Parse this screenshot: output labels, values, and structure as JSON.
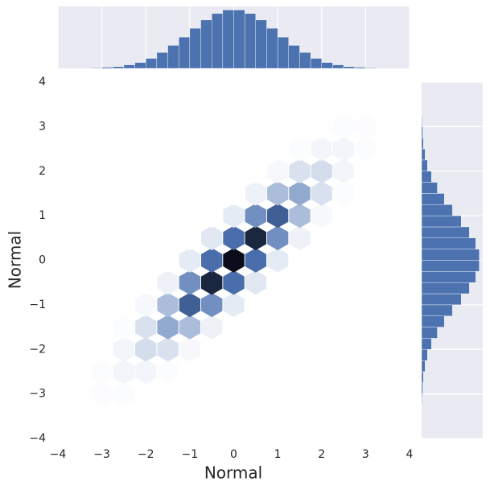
{
  "chart_data": {
    "type": "hexbin",
    "xlabel": "Normal",
    "ylabel": "Normal",
    "xlim": [
      -4,
      4
    ],
    "ylim": [
      -4,
      4
    ],
    "xticks": [
      {
        "value": -4,
        "label": "−4"
      },
      {
        "value": -3,
        "label": "−3"
      },
      {
        "value": -2,
        "label": "−2"
      },
      {
        "value": -1,
        "label": "−1"
      },
      0,
      1,
      2,
      3,
      4
    ],
    "yticks": [
      {
        "value": -4,
        "label": "−4"
      },
      {
        "value": -3,
        "label": "−3"
      },
      {
        "value": -2,
        "label": "−2"
      },
      {
        "value": -1,
        "label": "−1"
      },
      0,
      1,
      2,
      3,
      4
    ],
    "color": "#4c72b0",
    "x": [
      -3.5,
      -3,
      -2.5,
      -2,
      -1.5,
      -1,
      -0.5,
      0,
      0.5,
      1,
      1.5,
      2,
      2.5,
      3,
      3.5
    ],
    "y": [
      -3.5,
      -3,
      -2.5,
      -2,
      -1.5,
      -1,
      -0.5,
      0,
      0.5,
      1,
      1.5,
      2,
      2.5,
      3,
      3.5
    ],
    "counts": [
      [
        2,
        2,
        1,
        0,
        0,
        0,
        0,
        0,
        0,
        0,
        0,
        0,
        0,
        0,
        0
      ],
      [
        2,
        9,
        10,
        3,
        0,
        0,
        0,
        0,
        0,
        0,
        0,
        0,
        0,
        0,
        0
      ],
      [
        1,
        10,
        37,
        37,
        10,
        0,
        0,
        0,
        0,
        0,
        0,
        0,
        0,
        0,
        0
      ],
      [
        0,
        3,
        37,
        122,
        107,
        25,
        0,
        0,
        0,
        0,
        0,
        0,
        0,
        0,
        0
      ],
      [
        0,
        0,
        10,
        107,
        306,
        235,
        48,
        0,
        0,
        0,
        0,
        0,
        0,
        0,
        0
      ],
      [
        0,
        0,
        0,
        25,
        235,
        591,
        398,
        72,
        0,
        0,
        0,
        0,
        0,
        0,
        0
      ],
      [
        0,
        0,
        0,
        0,
        48,
        398,
        877,
        518,
        82,
        0,
        0,
        0,
        0,
        0,
        0
      ],
      [
        0,
        0,
        0,
        0,
        0,
        72,
        518,
        1000,
        518,
        72,
        0,
        0,
        0,
        0,
        0
      ],
      [
        0,
        0,
        0,
        0,
        0,
        0,
        82,
        518,
        877,
        398,
        48,
        0,
        0,
        0,
        0
      ],
      [
        0,
        0,
        0,
        0,
        0,
        0,
        0,
        72,
        398,
        591,
        235,
        25,
        0,
        0,
        0
      ],
      [
        0,
        0,
        0,
        0,
        0,
        0,
        0,
        0,
        48,
        235,
        306,
        107,
        10,
        0,
        0
      ],
      [
        0,
        0,
        0,
        0,
        0,
        0,
        0,
        0,
        0,
        25,
        107,
        122,
        37,
        3,
        0
      ],
      [
        0,
        0,
        0,
        0,
        0,
        0,
        0,
        0,
        0,
        0,
        10,
        37,
        37,
        10,
        1
      ],
      [
        0,
        0,
        0,
        0,
        0,
        0,
        0,
        0,
        0,
        0,
        0,
        3,
        10,
        9,
        2
      ],
      [
        0,
        0,
        0,
        0,
        0,
        0,
        0,
        0,
        0,
        0,
        0,
        0,
        1,
        2,
        2
      ]
    ],
    "marginal_x": {
      "type": "histogram",
      "color": "#4c72b0",
      "ylim": [
        0,
        105
      ],
      "bins": [
        -3.5,
        -3.25,
        -3,
        -2.75,
        -2.5,
        -2.25,
        -2,
        -1.75,
        -1.5,
        -1.25,
        -1,
        -0.75,
        -0.5,
        -0.25,
        0,
        0.25,
        0.5,
        0.75,
        1,
        1.25,
        1.5,
        1.75,
        2,
        2.25,
        2.5,
        2.75,
        3,
        3.25,
        3.5
      ],
      "counts": [
        0,
        1,
        2,
        3,
        6,
        10,
        17,
        27,
        39,
        53,
        68,
        82,
        93,
        99,
        99,
        93,
        82,
        68,
        53,
        39,
        27,
        17,
        10,
        6,
        3,
        2,
        1,
        0
      ]
    },
    "marginal_y": {
      "type": "histogram",
      "color": "#4c72b0",
      "xlim": [
        0,
        105
      ],
      "bins": [
        -3.5,
        -3.25,
        -3,
        -2.75,
        -2.5,
        -2.25,
        -2,
        -1.75,
        -1.5,
        -1.25,
        -1,
        -0.75,
        -0.5,
        -0.25,
        0,
        0.25,
        0.5,
        0.75,
        1,
        1.25,
        1.5,
        1.75,
        2,
        2.25,
        2.5,
        2.75,
        3,
        3.25,
        3.5
      ],
      "counts": [
        0,
        1,
        2,
        3,
        6,
        10,
        17,
        27,
        39,
        53,
        68,
        82,
        93,
        99,
        99,
        93,
        82,
        68,
        53,
        39,
        27,
        17,
        10,
        6,
        3,
        2,
        1,
        0
      ]
    }
  }
}
